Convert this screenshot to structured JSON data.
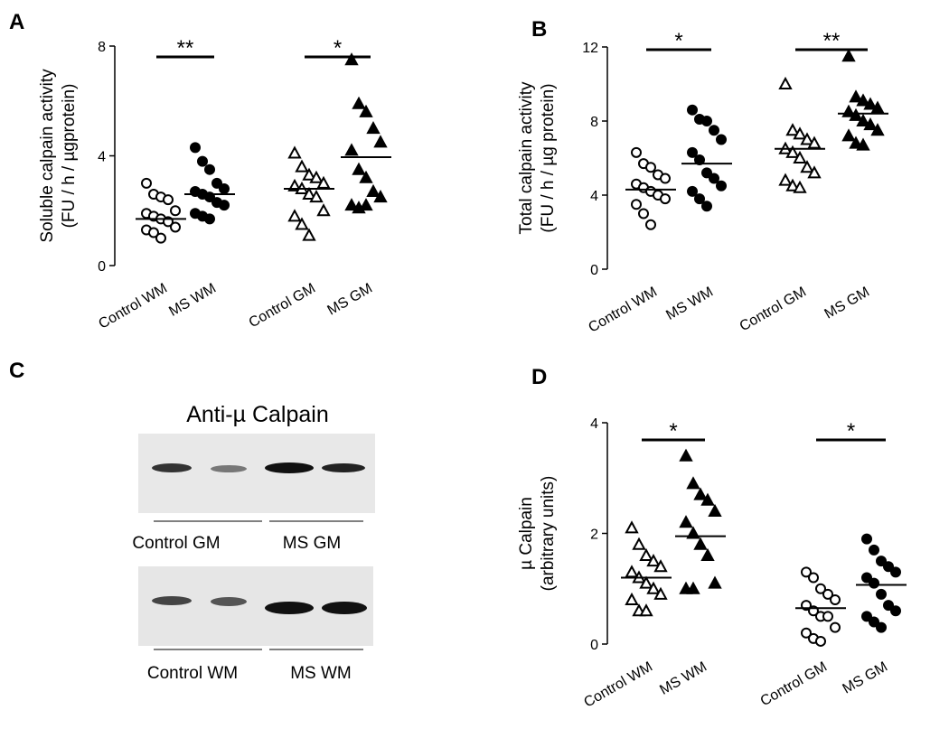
{
  "chart_data": [
    {
      "type": "dotplot",
      "panel": "A",
      "ylabel": [
        "Soluble calpain activity",
        "(FU  / h / µgprotein)"
      ],
      "categories": [
        "Control WM",
        "MS WM",
        "Control GM",
        "MS GM"
      ],
      "groups": [
        {
          "marker": "circle",
          "filled": false,
          "mean": 1.7,
          "values": [
            3.0,
            2.6,
            2.5,
            2.4,
            2.0,
            1.9,
            1.8,
            1.7,
            1.6,
            1.4,
            1.3,
            1.2,
            1.0
          ]
        },
        {
          "marker": "circle",
          "filled": true,
          "mean": 2.6,
          "values": [
            4.3,
            3.8,
            3.5,
            3.0,
            2.8,
            2.7,
            2.6,
            2.5,
            2.3,
            2.2,
            1.9,
            1.8,
            1.7
          ]
        },
        {
          "marker": "triangle",
          "filled": false,
          "mean": 2.8,
          "values": [
            4.1,
            3.6,
            3.3,
            3.2,
            3.0,
            2.9,
            2.8,
            2.6,
            2.5,
            2.0,
            1.8,
            1.5,
            1.1
          ]
        },
        {
          "marker": "triangle",
          "filled": true,
          "mean": 3.95,
          "values": [
            7.5,
            5.9,
            5.6,
            5.0,
            4.5,
            4.2,
            3.5,
            3.2,
            2.7,
            2.5,
            2.2,
            2.1,
            2.2
          ]
        }
      ],
      "annotations": [
        "**",
        "*"
      ],
      "ylim": [
        0,
        8
      ],
      "yticks": [
        0,
        4,
        8
      ]
    },
    {
      "type": "dotplot",
      "panel": "B",
      "ylabel": [
        "Total calpain activity",
        "(FU / h / µg protein)"
      ],
      "categories": [
        "Control WM",
        "MS WM",
        "Control GM",
        "MS GM"
      ],
      "groups": [
        {
          "marker": "circle",
          "filled": false,
          "mean": 4.3,
          "values": [
            6.3,
            5.7,
            5.5,
            5.1,
            4.9,
            4.6,
            4.4,
            4.2,
            4.0,
            3.8,
            3.5,
            3.0,
            2.4
          ]
        },
        {
          "marker": "circle",
          "filled": true,
          "mean": 5.7,
          "values": [
            8.6,
            8.1,
            8.0,
            7.5,
            7.0,
            6.3,
            5.9,
            5.2,
            4.9,
            4.5,
            4.2,
            3.8,
            3.4
          ]
        },
        {
          "marker": "triangle",
          "filled": false,
          "mean": 6.5,
          "values": [
            10.0,
            7.5,
            7.3,
            7.0,
            6.8,
            6.5,
            6.3,
            6.0,
            5.5,
            5.2,
            4.8,
            4.5,
            4.4
          ]
        },
        {
          "marker": "triangle",
          "filled": true,
          "mean": 8.4,
          "values": [
            11.5,
            9.3,
            9.1,
            8.9,
            8.7,
            8.5,
            8.3,
            8.0,
            7.8,
            7.5,
            7.2,
            6.8,
            6.7
          ]
        }
      ],
      "annotations": [
        "*",
        "**"
      ],
      "ylim": [
        0,
        12
      ],
      "yticks": [
        0,
        4,
        8,
        12
      ]
    },
    {
      "type": "dotplot",
      "panel": "D",
      "ylabel": [
        "µ Calpain",
        "(arbitrary units)"
      ],
      "categories": [
        "Control WM",
        "MS WM",
        "Control GM",
        "MS GM"
      ],
      "groups": [
        {
          "marker": "triangle",
          "filled": false,
          "mean": 1.2,
          "values": [
            2.1,
            1.8,
            1.6,
            1.5,
            1.4,
            1.3,
            1.2,
            1.1,
            1.0,
            0.9,
            0.8,
            0.6,
            0.6
          ]
        },
        {
          "marker": "triangle",
          "filled": true,
          "mean": 1.95,
          "values": [
            3.4,
            2.9,
            2.7,
            2.6,
            2.4,
            2.2,
            2.0,
            1.8,
            1.6,
            1.1,
            1.0,
            1.0
          ]
        },
        {
          "marker": "circle",
          "filled": false,
          "mean": 0.65,
          "values": [
            1.3,
            1.2,
            1.0,
            0.9,
            0.8,
            0.7,
            0.6,
            0.5,
            0.5,
            0.3,
            0.2,
            0.1,
            0.05
          ]
        },
        {
          "marker": "circle",
          "filled": true,
          "mean": 1.07,
          "values": [
            1.9,
            1.7,
            1.5,
            1.4,
            1.3,
            1.2,
            1.1,
            0.9,
            0.7,
            0.6,
            0.5,
            0.4,
            0.3
          ]
        }
      ],
      "annotations": [
        "*",
        "*"
      ],
      "ylim": [
        0,
        4
      ],
      "yticks": [
        0,
        2,
        4
      ]
    }
  ],
  "blot": {
    "panel": "C",
    "title": "Anti-µ Calpain",
    "strips": [
      {
        "labels": [
          "Control GM",
          "MS GM"
        ]
      },
      {
        "labels": [
          "Control WM",
          "MS WM"
        ]
      }
    ]
  }
}
